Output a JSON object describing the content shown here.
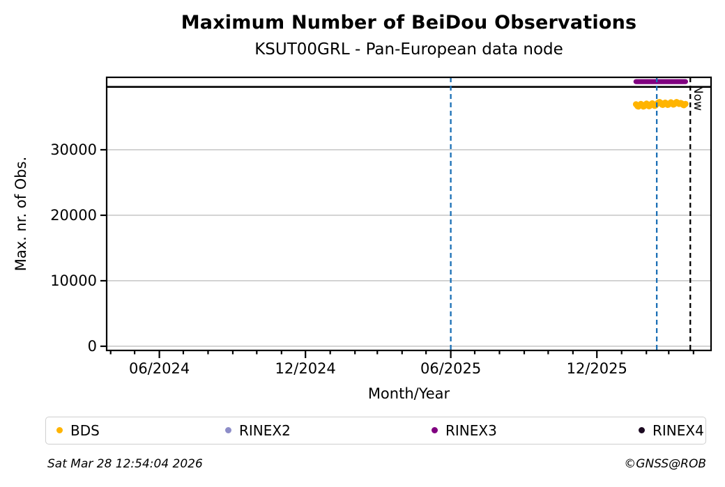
{
  "title": "Maximum Number of BeiDou Observations",
  "subtitle": "KSUT00GRL - Pan-European data node",
  "footer": {
    "timestamp": "Sat Mar 28 12:54:04 2026",
    "copyright": "©GNSS@ROB"
  },
  "chart_data": {
    "type": "scatter",
    "title": "Maximum Number of BeiDou Observations",
    "subtitle": "KSUT00GRL - Pan-European data node",
    "xlabel": "Month/Year",
    "ylabel": "Max. nr. of Obs.",
    "grid": "horizontal",
    "grid_color": "#bfbfbf",
    "legend_position": "bottom",
    "x_axis": {
      "start_date": "2024-03-27",
      "end_date": "2026-04-23",
      "minor_tick_interval": "month",
      "major_ticks": [
        {
          "date": "2024-06-01",
          "label": "06/2024"
        },
        {
          "date": "2024-12-01",
          "label": "12/2024"
        },
        {
          "date": "2025-06-01",
          "label": "06/2025"
        },
        {
          "date": "2025-12-01",
          "label": "12/2025"
        }
      ]
    },
    "y_axis": {
      "min": -640,
      "max": 41060,
      "ticks": [
        0,
        10000,
        20000,
        30000
      ],
      "tick_labels": [
        "0",
        "10000",
        "20000",
        "30000"
      ]
    },
    "max_obs_line": {
      "value": 39600,
      "color": "#000000",
      "style": "solid"
    },
    "vertical_lines": [
      {
        "date": "2025-06-01",
        "color": "#1a6fb5",
        "style": "dashed"
      },
      {
        "date": "2026-02-14",
        "color": "#1a6fb5",
        "style": "dashed"
      }
    ],
    "now_line": {
      "date": "2026-03-28",
      "label": "Now",
      "color": "#000000",
      "style": "dashed"
    },
    "series": [
      {
        "name": "BDS",
        "color": "#ffb400",
        "marker": "dot",
        "start_date": "2026-01-19",
        "end_date": "2026-03-22",
        "values": [
          36950,
          36800,
          36650,
          36600,
          36700,
          36850,
          37000,
          36900,
          36700,
          36600,
          36650,
          36800,
          36950,
          37050,
          36950,
          36750,
          36650,
          36700,
          36850,
          37000,
          37100,
          36950,
          36800,
          36700,
          36750,
          36900,
          37050,
          37150,
          37250,
          37300,
          37200,
          37050,
          36900,
          36850,
          36950,
          37100,
          37200,
          37100,
          36950,
          36850,
          36900,
          37000,
          37150,
          37250,
          37150,
          37000,
          36900,
          36950,
          37050,
          37200,
          37300,
          37200,
          37100,
          37000,
          37050,
          37150,
          37100,
          36950,
          36850,
          36800,
          36900,
          37000
        ]
      },
      {
        "name": "RINEX2",
        "color": "#8d8dc8",
        "marker": "dot",
        "values": []
      },
      {
        "name": "RINEX3",
        "color": "#800080",
        "marker": "dot",
        "start_date": "2026-01-19",
        "end_date": "2026-03-22",
        "constant_value": 40400,
        "n_points": 62
      },
      {
        "name": "RINEX4",
        "color": "#1c0a21",
        "marker": "dot",
        "values": []
      }
    ]
  }
}
